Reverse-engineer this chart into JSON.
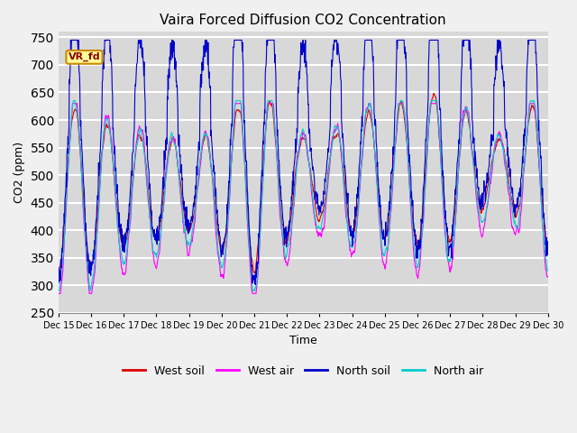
{
  "title": "Vaira Forced Diffusion CO2 Concentration",
  "xlabel": "Time",
  "ylabel": "CO2 (ppm)",
  "ylim": [
    250,
    760
  ],
  "yticks": [
    250,
    300,
    350,
    400,
    450,
    500,
    550,
    600,
    650,
    700,
    750
  ],
  "annotation_text": "VR_fd",
  "bg_color": "#e8e8e8",
  "plot_bg_color": "#d8d8d8",
  "grid_color": "#c8c8c8",
  "line_colors_west_soil": "#dd0000",
  "line_colors_west_air": "#ff00ff",
  "line_colors_north_soil": "#0000cc",
  "line_colors_north_air": "#00cccc",
  "legend_labels": [
    "West soil",
    "West air",
    "North soil",
    "North air"
  ],
  "x_tick_labels": [
    "Dec 15",
    "Dec 16",
    "Dec 17",
    "Dec 18",
    "Dec 19",
    "Dec 20",
    "Dec 21",
    "Dec 22",
    "Dec 23",
    "Dec 24",
    "Dec 25",
    "Dec 26",
    "Dec 27",
    "Dec 28",
    "Dec 29",
    "Dec 30"
  ],
  "n_days": 15,
  "pts_per_day": 96,
  "linewidth": 0.8,
  "title_fontsize": 11,
  "axis_label_fontsize": 9,
  "tick_fontsize": 7,
  "legend_fontsize": 9,
  "annotation_fontsize": 8
}
